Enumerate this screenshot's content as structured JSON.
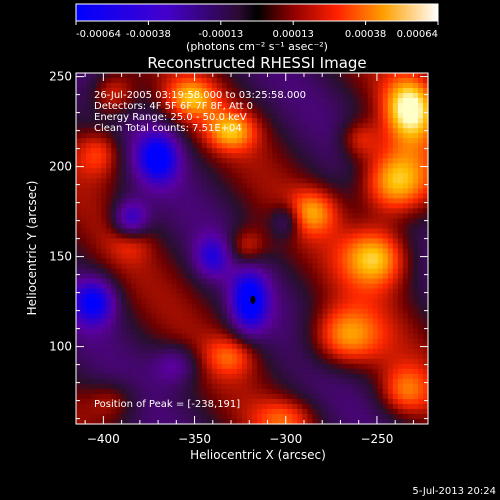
{
  "chart_data": {
    "type": "heatmap",
    "title": "Reconstructed RHESSI Image",
    "xlabel": "Heliocentric X (arcsec)",
    "ylabel": "Heliocentric Y (arcsec)",
    "xlim": [
      -415,
      -222
    ],
    "ylim": [
      57,
      252
    ],
    "x_ticks": [
      -400,
      -350,
      -300,
      -250
    ],
    "y_ticks": [
      100,
      150,
      200,
      250
    ],
    "colorbar": {
      "ticks": [
        "-0.00064",
        "-0.00038",
        "-0.00013",
        "0.00013",
        "0.00038",
        "0.00064"
      ],
      "unit_label": "(photons cm⁻² s⁻¹ asec⁻²)",
      "range": [
        -0.00064,
        0.00064
      ]
    },
    "annotations": [
      "26-Jul-2005 03:19:58.000 to 03:25:58.000",
      "Detectors: 4F 5F 6F 7F 8F, Att 0",
      "Energy Range: 25.0 - 50.0 keV",
      "Clean     Total counts: 7.51E+04"
    ],
    "peak_text": "Position of Peak = [-238,191]",
    "timestamp": "5-Jul-2013 20:24",
    "sources": [
      {
        "x": -240,
        "y": 191,
        "sx": 14,
        "sy": 14,
        "amp": 1.0
      },
      {
        "x": -232,
        "y": 232,
        "sx": 10,
        "sy": 13,
        "amp": 0.85
      },
      {
        "x": -250,
        "y": 150,
        "sx": 13,
        "sy": 12,
        "amp": 0.8
      },
      {
        "x": -268,
        "y": 105,
        "sx": 14,
        "sy": 12,
        "amp": 0.7
      },
      {
        "x": -285,
        "y": 175,
        "sx": 10,
        "sy": 9,
        "amp": 0.55
      },
      {
        "x": -330,
        "y": 220,
        "sx": 10,
        "sy": 8,
        "amp": 0.6
      },
      {
        "x": -352,
        "y": 238,
        "sx": 10,
        "sy": 8,
        "amp": 0.6
      },
      {
        "x": -395,
        "y": 240,
        "sx": 9,
        "sy": 9,
        "amp": 0.55
      },
      {
        "x": -402,
        "y": 208,
        "sx": 9,
        "sy": 10,
        "amp": 0.5
      },
      {
        "x": -322,
        "y": 155,
        "sx": 8,
        "sy": 8,
        "amp": 0.5
      },
      {
        "x": -330,
        "y": 95,
        "sx": 10,
        "sy": 8,
        "amp": 0.4
      },
      {
        "x": -300,
        "y": 60,
        "sx": 12,
        "sy": 8,
        "amp": 0.4
      },
      {
        "x": -235,
        "y": 75,
        "sx": 10,
        "sy": 10,
        "amp": 0.5
      },
      {
        "x": -395,
        "y": 70,
        "sx": 10,
        "sy": 8,
        "amp": 0.35
      },
      {
        "x": -385,
        "y": 160,
        "sx": 8,
        "sy": 8,
        "amp": 0.35
      },
      {
        "x": -260,
        "y": 215,
        "sx": 8,
        "sy": 8,
        "amp": 0.45
      },
      {
        "x": -370,
        "y": 205,
        "sx": 8,
        "sy": 10,
        "amp": -0.95
      },
      {
        "x": -385,
        "y": 170,
        "sx": 7,
        "sy": 8,
        "amp": -0.85
      },
      {
        "x": -405,
        "y": 125,
        "sx": 8,
        "sy": 9,
        "amp": -0.9
      },
      {
        "x": -320,
        "y": 125,
        "sx": 7,
        "sy": 12,
        "amp": -1.0
      },
      {
        "x": -340,
        "y": 150,
        "sx": 7,
        "sy": 8,
        "amp": -0.6
      },
      {
        "x": -300,
        "y": 170,
        "sx": 6,
        "sy": 7,
        "amp": -0.45
      },
      {
        "x": -360,
        "y": 90,
        "sx": 9,
        "sy": 8,
        "amp": -0.45
      }
    ]
  }
}
